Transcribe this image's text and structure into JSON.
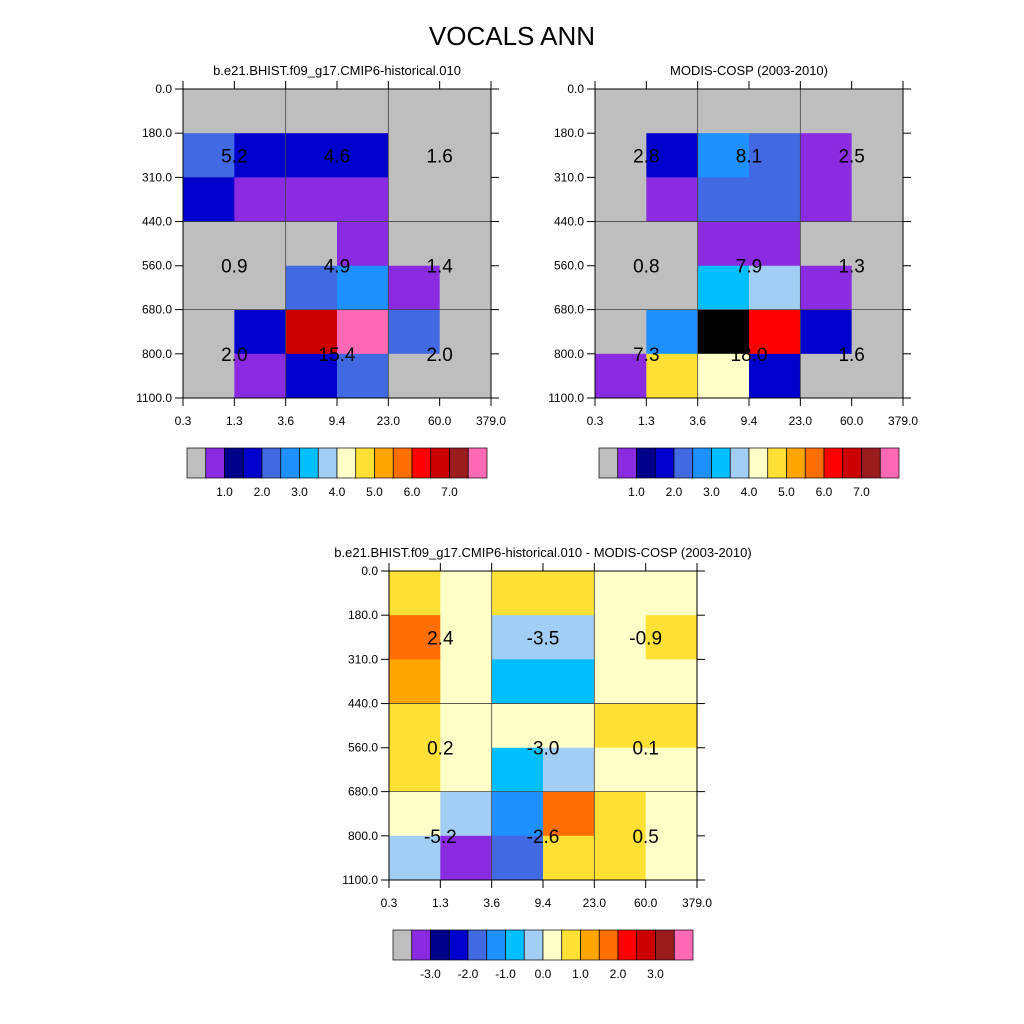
{
  "figure": {
    "title": "VOCALS ANN"
  },
  "chart_data": [
    {
      "type": "heatmap",
      "title": "b.e21.BHIST.f09_g17.CMIP6-historical.010",
      "x_ticks": [
        "0.3",
        "1.3",
        "3.6",
        "9.4",
        "23.0",
        "60.0",
        "379.0"
      ],
      "y_ticks": [
        "0.0",
        "180.0",
        "310.0",
        "440.0",
        "560.0",
        "680.0",
        "800.0",
        "1100.0"
      ],
      "grid": [
        [
          0,
          0,
          0,
          0,
          0,
          0
        ],
        [
          4,
          3,
          3,
          3,
          0,
          0
        ],
        [
          3,
          1,
          1,
          1,
          0,
          0
        ],
        [
          0,
          0,
          0,
          1,
          0,
          0
        ],
        [
          0,
          0,
          4,
          5,
          1,
          0
        ],
        [
          0,
          3,
          13,
          15,
          4,
          0
        ],
        [
          0,
          1,
          3,
          4,
          0,
          0
        ]
      ],
      "block_values": [
        [
          "5.2",
          "4.6",
          "1.6"
        ],
        [
          "0.9",
          "4.9",
          "1.4"
        ],
        [
          "2.0",
          "15.4",
          "2.0"
        ]
      ],
      "colorbar_labels": [
        "1.0",
        "2.0",
        "3.0",
        "4.0",
        "5.0",
        "6.0",
        "7.0"
      ]
    },
    {
      "type": "heatmap",
      "title": "MODIS-COSP (2003-2010)",
      "x_ticks": [
        "0.3",
        "1.3",
        "3.6",
        "9.4",
        "23.0",
        "60.0",
        "379.0"
      ],
      "y_ticks": [
        "0.0",
        "180.0",
        "310.0",
        "440.0",
        "560.0",
        "680.0",
        "800.0",
        "1100.0"
      ],
      "grid": [
        [
          0,
          0,
          0,
          0,
          0,
          0
        ],
        [
          0,
          3,
          5,
          4,
          1,
          0
        ],
        [
          0,
          1,
          4,
          4,
          1,
          0
        ],
        [
          0,
          0,
          1,
          1,
          0,
          0
        ],
        [
          0,
          0,
          6,
          7,
          1,
          0
        ],
        [
          0,
          5,
          16,
          12,
          3,
          0
        ],
        [
          1,
          9,
          8,
          3,
          0,
          0
        ]
      ],
      "block_values": [
        [
          "2.8",
          "8.1",
          "2.5"
        ],
        [
          "0.8",
          "7.9",
          "1.3"
        ],
        [
          "7.3",
          "18.0",
          "1.6"
        ]
      ],
      "colorbar_labels": [
        "1.0",
        "2.0",
        "3.0",
        "4.0",
        "5.0",
        "6.0",
        "7.0"
      ]
    },
    {
      "type": "heatmap",
      "title": "b.e21.BHIST.f09_g17.CMIP6-historical.010 - MODIS-COSP (2003-2010)",
      "x_ticks": [
        "0.3",
        "1.3",
        "3.6",
        "9.4",
        "23.0",
        "60.0",
        "379.0"
      ],
      "y_ticks": [
        "0.0",
        "180.0",
        "310.0",
        "440.0",
        "560.0",
        "680.0",
        "800.0",
        "1100.0"
      ],
      "grid": [
        [
          9,
          8,
          9,
          9,
          8,
          8
        ],
        [
          11,
          8,
          7,
          7,
          8,
          9
        ],
        [
          10,
          8,
          6,
          6,
          8,
          8
        ],
        [
          9,
          8,
          8,
          8,
          9,
          9
        ],
        [
          9,
          8,
          6,
          7,
          8,
          8
        ],
        [
          8,
          7,
          5,
          11,
          9,
          8
        ],
        [
          7,
          1,
          4,
          9,
          9,
          8
        ]
      ],
      "block_values": [
        [
          "2.4",
          "-3.5",
          "-0.9"
        ],
        [
          "0.2",
          "-3.0",
          "0.1"
        ],
        [
          "-5.2",
          "-2.6",
          "0.5"
        ]
      ],
      "colorbar_labels": [
        "-3.0",
        "-2.0",
        "-1.0",
        "0.0",
        "1.0",
        "2.0",
        "3.0"
      ]
    }
  ],
  "colors": {
    "palette": [
      "#bebebe",
      "#8a2be2",
      "#00008b",
      "#0000cd",
      "#4169e1",
      "#1e90ff",
      "#00bfff",
      "#a2cdf4",
      "#ffffc8",
      "#ffe135",
      "#ffa500",
      "#ff6e00",
      "#ff0000",
      "#cd0000",
      "#9b1c1c",
      "#ff69b4"
    ]
  }
}
